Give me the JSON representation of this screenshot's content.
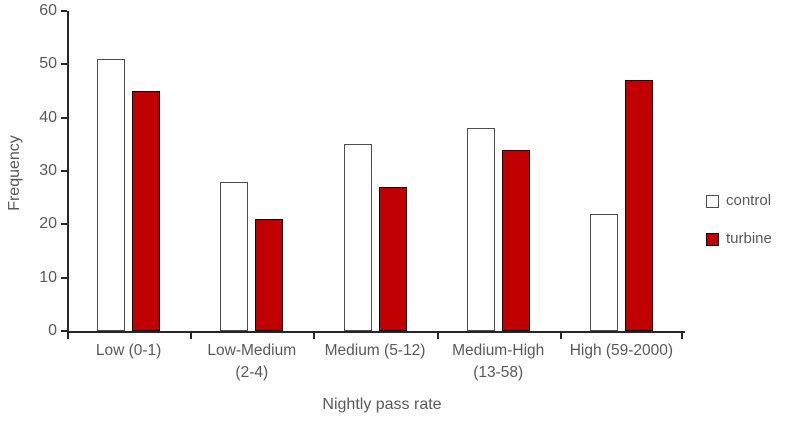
{
  "chart_data": {
    "type": "bar",
    "title": "",
    "xlabel": "Nightly pass rate",
    "ylabel": "Frequency",
    "ylim": [
      0,
      60
    ],
    "ytick_step": 10,
    "grid": false,
    "legend_position": "right",
    "categories": [
      "Low (0-1)",
      "Low-Medium (2-4)",
      "Medium (5-12)",
      "Medium-High (13-58)",
      "High (59-2000)"
    ],
    "category_lines": [
      [
        "Low (0-1)"
      ],
      [
        "Low-Medium",
        "(2-4)"
      ],
      [
        "Medium (5-12)"
      ],
      [
        "Medium-High",
        "(13-58)"
      ],
      [
        "High (59-2000)"
      ]
    ],
    "series": [
      {
        "name": "control",
        "values": [
          51,
          28,
          35,
          38,
          22
        ],
        "fill": "#FFFFFF",
        "border": "#4D4D4D"
      },
      {
        "name": "turbine",
        "values": [
          45,
          21,
          27,
          34,
          47
        ],
        "fill": "#C00000",
        "border": "#000000"
      }
    ]
  },
  "colors": {
    "axis": "#262626",
    "text": "#595959",
    "background": "#FFFFFF"
  }
}
